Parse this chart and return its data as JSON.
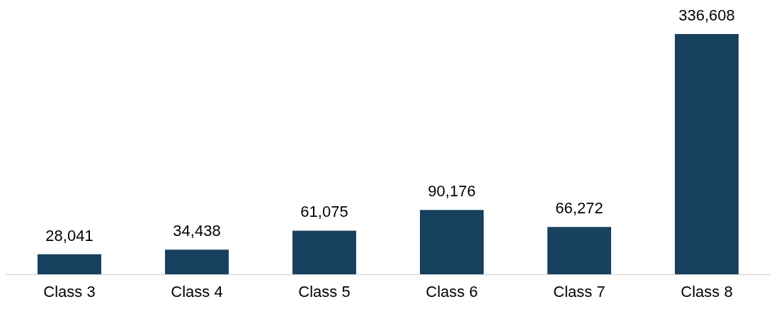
{
  "chart_data": {
    "type": "bar",
    "categories": [
      "Class 3",
      "Class 4",
      "Class 5",
      "Class 6",
      "Class 7",
      "Class 8"
    ],
    "values": [
      28041,
      34438,
      61075,
      90176,
      66272,
      336608
    ],
    "value_labels": [
      "28,041",
      "34,438",
      "61,075",
      "90,176",
      "66,272",
      "336,608"
    ],
    "color": "#17415f"
  }
}
